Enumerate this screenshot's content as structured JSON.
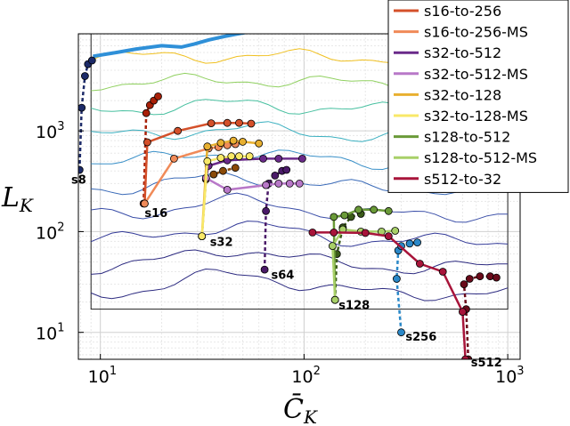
{
  "chart_data": {
    "type": "line",
    "xscale": "log",
    "yscale": "log",
    "xlim": [
      7.8,
      1150
    ],
    "ylim": [
      5.4,
      9200
    ],
    "xlabel": "C̄",
    "xlabel_sub": "K",
    "ylabel": "L",
    "ylabel_sub": "K",
    "xticks": [
      {
        "value": 10,
        "base": "10",
        "exp": "1"
      },
      {
        "value": 100,
        "base": "10",
        "exp": "2"
      },
      {
        "value": 1000,
        "base": "10",
        "exp": "3"
      }
    ],
    "yticks": [
      {
        "value": 10,
        "base": "10",
        "exp": "1"
      },
      {
        "value": 100,
        "base": "10",
        "exp": "2"
      },
      {
        "value": 1000,
        "base": "10",
        "exp": "3"
      }
    ],
    "grid": true,
    "legend_position": "top-right",
    "contour_region": {
      "x": [
        9,
        1000
      ],
      "y": [
        17,
        9200
      ]
    },
    "contour_levels": [
      5,
      10,
      20,
      40,
      80,
      160,
      320,
      640,
      1280,
      2560
    ],
    "optimal_line": {
      "color": "#2f90d8",
      "x": [
        9.2,
        12,
        15,
        20,
        25,
        29,
        34,
        40,
        46,
        52,
        58
      ],
      "y": [
        5500,
        6000,
        6500,
        7000,
        6800,
        7300,
        8000,
        8600,
        9100,
        9500,
        9800
      ]
    },
    "series": [
      {
        "name": "s16-to-256",
        "color": "#d4502a",
        "x": [
          16.5,
          17,
          24,
          35,
          42,
          48,
          55
        ],
        "y": [
          190,
          770,
          1000,
          1190,
          1200,
          1200,
          1180
        ]
      },
      {
        "name": "s16-to-256-MS",
        "color": "#f08a58",
        "x": [
          16.5,
          23,
          34,
          38,
          42,
          46
        ],
        "y": [
          190,
          530,
          670,
          690,
          720,
          740
        ]
      },
      {
        "name": "s32-to-512",
        "color": "#6a2a8a",
        "x": [
          33,
          34,
          42,
          63,
          75,
          98
        ],
        "y": [
          340,
          450,
          510,
          530,
          530,
          530
        ]
      },
      {
        "name": "s32-to-512-MS",
        "color": "#b878c8",
        "x": [
          33,
          42,
          65,
          75,
          85,
          95
        ],
        "y": [
          340,
          260,
          290,
          300,
          300,
          300
        ]
      },
      {
        "name": "s32-to-128",
        "color": "#e8b030",
        "x": [
          31.5,
          33.5,
          39,
          45,
          50,
          60
        ],
        "y": [
          90,
          700,
          760,
          800,
          780,
          750
        ]
      },
      {
        "name": "s32-to-128-MS",
        "color": "#f8e868",
        "x": [
          31.5,
          33.5,
          39,
          44,
          48,
          54
        ],
        "y": [
          90,
          500,
          540,
          560,
          560,
          560
        ]
      },
      {
        "name": "s128-to-512",
        "color": "#6a9a38",
        "x": [
          142,
          140,
          158,
          185,
          220,
          260
        ],
        "y": [
          21,
          140,
          145,
          165,
          165,
          160
        ]
      },
      {
        "name": "s128-to-512-MS",
        "color": "#a8d068",
        "x": [
          142,
          138,
          155,
          190,
          240,
          280
        ],
        "y": [
          21,
          72,
          105,
          100,
          100,
          102
        ]
      },
      {
        "name": "s512-to-32",
        "color": "#a8143a",
        "x": [
          620,
          600,
          480,
          370,
          260,
          200,
          140,
          110
        ],
        "y": [
          5.4,
          16,
          40,
          48,
          90,
          97,
          98,
          98
        ]
      }
    ],
    "dashed_series": [
      {
        "name": "s8",
        "color": "#1c2a68",
        "x": [
          7.9,
          8.1,
          8.4,
          8.7,
          9.1
        ],
        "y": [
          410,
          1700,
          3500,
          4600,
          5000
        ]
      },
      {
        "name": "s16",
        "color": "#a82008",
        "x": [
          16.3,
          16.8,
          17.5,
          18.3,
          19.2
        ],
        "y": [
          190,
          1500,
          1800,
          2000,
          2200
        ]
      },
      {
        "name": "s32",
        "color": "#8a4a08",
        "x": [
          31.5,
          33,
          36,
          40,
          46
        ],
        "y": [
          90,
          330,
          370,
          400,
          430
        ]
      },
      {
        "name": "s64",
        "color": "#4a1a68",
        "x": [
          64,
          65,
          67,
          72,
          78,
          82
        ],
        "y": [
          42,
          160,
          300,
          360,
          400,
          410
        ]
      },
      {
        "name": "s128",
        "color": "#3a5a18",
        "x": [
          142,
          145,
          155,
          170,
          190
        ],
        "y": [
          21,
          60,
          110,
          140,
          150
        ]
      },
      {
        "name": "s256",
        "color": "#2a88c8",
        "x": [
          300,
          285,
          290,
          300,
          330,
          360
        ],
        "y": [
          10,
          34,
          65,
          72,
          76,
          78
        ]
      },
      {
        "name": "s512",
        "color": "#6a0a1a",
        "x": [
          640,
          625,
          610,
          650,
          730,
          820,
          880
        ],
        "y": [
          5.4,
          17,
          30,
          34,
          36,
          36,
          35
        ]
      }
    ],
    "point_labels": [
      {
        "text": "s8",
        "x": 7.2,
        "y": 300
      },
      {
        "text": "s16",
        "x": 16.5,
        "y": 140
      },
      {
        "text": "s32",
        "x": 34.5,
        "y": 72
      },
      {
        "text": "s64",
        "x": 69,
        "y": 34
      },
      {
        "text": "s128",
        "x": 148,
        "y": 17
      },
      {
        "text": "s256",
        "x": 315,
        "y": 8.3
      },
      {
        "text": "s512",
        "x": 660,
        "y": 4.6
      }
    ],
    "legend": [
      "s16-to-256",
      "s16-to-256-MS",
      "s32-to-512",
      "s32-to-512-MS",
      "s32-to-128",
      "s32-to-128-MS",
      "s128-to-512",
      "s128-to-512-MS",
      "s512-to-32"
    ]
  }
}
